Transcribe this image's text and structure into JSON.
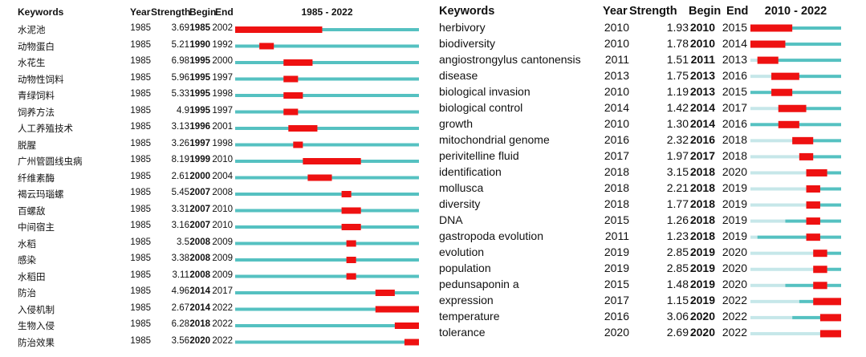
{
  "colors": {
    "line": "#55c1c1",
    "burst": "#ee1111",
    "light_line": "#c6e7e9"
  },
  "left": {
    "headers": {
      "keywords": "Keywords",
      "year": "Year",
      "strength": "Strength",
      "begin": "Begin",
      "end": "End",
      "range": "1985 - 2022"
    },
    "rows": [
      {
        "keyword": "水泥池",
        "year": "1985",
        "strength": "3.69",
        "begin": "1985",
        "end": "2002"
      },
      {
        "keyword": "动物蛋白",
        "year": "1985",
        "strength": "5.21",
        "begin": "1990",
        "end": "1992"
      },
      {
        "keyword": "水花生",
        "year": "1985",
        "strength": "6.98",
        "begin": "1995",
        "end": "2000"
      },
      {
        "keyword": "动物性饲料",
        "year": "1985",
        "strength": "5.96",
        "begin": "1995",
        "end": "1997"
      },
      {
        "keyword": "青绿饲料",
        "year": "1985",
        "strength": "5.33",
        "begin": "1995",
        "end": "1998"
      },
      {
        "keyword": "饲养方法",
        "year": "1985",
        "strength": "4.9",
        "begin": "1995",
        "end": "1997"
      },
      {
        "keyword": "人工养殖技术",
        "year": "1985",
        "strength": "3.13",
        "begin": "1996",
        "end": "2001"
      },
      {
        "keyword": "脱腥",
        "year": "1985",
        "strength": "3.26",
        "begin": "1997",
        "end": "1998"
      },
      {
        "keyword": "广州管圆线虫病",
        "year": "1985",
        "strength": "8.19",
        "begin": "1999",
        "end": "2010"
      },
      {
        "keyword": "纤维素酶",
        "year": "1985",
        "strength": "2.61",
        "begin": "2000",
        "end": "2004"
      },
      {
        "keyword": "褐云玛瑙螺",
        "year": "1985",
        "strength": "5.45",
        "begin": "2007",
        "end": "2008"
      },
      {
        "keyword": "百螺敌",
        "year": "1985",
        "strength": "3.31",
        "begin": "2007",
        "end": "2010"
      },
      {
        "keyword": "中间宿主",
        "year": "1985",
        "strength": "3.16",
        "begin": "2007",
        "end": "2010"
      },
      {
        "keyword": "水稻",
        "year": "1985",
        "strength": "3.5",
        "begin": "2008",
        "end": "2009"
      },
      {
        "keyword": "感染",
        "year": "1985",
        "strength": "3.38",
        "begin": "2008",
        "end": "2009"
      },
      {
        "keyword": "水稻田",
        "year": "1985",
        "strength": "3.11",
        "begin": "2008",
        "end": "2009"
      },
      {
        "keyword": "防治",
        "year": "1985",
        "strength": "4.96",
        "begin": "2014",
        "end": "2017"
      },
      {
        "keyword": "入侵机制",
        "year": "1985",
        "strength": "2.67",
        "begin": "2014",
        "end": "2022"
      },
      {
        "keyword": "生物入侵",
        "year": "1985",
        "strength": "6.28",
        "begin": "2018",
        "end": "2022"
      },
      {
        "keyword": "防治效果",
        "year": "1985",
        "strength": "3.56",
        "begin": "2020",
        "end": "2022"
      }
    ]
  },
  "right": {
    "headers": {
      "keywords": "Keywords",
      "year": "Year",
      "strength": "Strength",
      "begin": "Begin",
      "end": "End",
      "range": "2010 - 2022"
    },
    "rows": [
      {
        "keyword": "herbivory",
        "year": "2010",
        "strength": "1.93",
        "begin": "2010",
        "end": "2015"
      },
      {
        "keyword": "biodiversity",
        "year": "2010",
        "strength": "1.78",
        "begin": "2010",
        "end": "2014"
      },
      {
        "keyword": "angiostrongylus cantonensis",
        "year": "2011",
        "strength": "1.51",
        "begin": "2011",
        "end": "2013"
      },
      {
        "keyword": "disease",
        "year": "2013",
        "strength": "1.75",
        "begin": "2013",
        "end": "2016"
      },
      {
        "keyword": "biological invasion",
        "year": "2010",
        "strength": "1.19",
        "begin": "2013",
        "end": "2015"
      },
      {
        "keyword": "biological control",
        "year": "2014",
        "strength": "1.42",
        "begin": "2014",
        "end": "2017"
      },
      {
        "keyword": "growth",
        "year": "2010",
        "strength": "1.30",
        "begin": "2014",
        "end": "2016"
      },
      {
        "keyword": "mitochondrial genome",
        "year": "2016",
        "strength": "2.32",
        "begin": "2016",
        "end": "2018"
      },
      {
        "keyword": "perivitelline fluid",
        "year": "2017",
        "strength": "1.97",
        "begin": "2017",
        "end": "2018"
      },
      {
        "keyword": "identification",
        "year": "2018",
        "strength": "3.15",
        "begin": "2018",
        "end": "2020"
      },
      {
        "keyword": "mollusca",
        "year": "2018",
        "strength": "2.21",
        "begin": "2018",
        "end": "2019"
      },
      {
        "keyword": "diversity",
        "year": "2018",
        "strength": "1.77",
        "begin": "2018",
        "end": "2019"
      },
      {
        "keyword": "DNA",
        "year": "2015",
        "strength": "1.26",
        "begin": "2018",
        "end": "2019"
      },
      {
        "keyword": "gastropoda evolution",
        "year": "2011",
        "strength": "1.23",
        "begin": "2018",
        "end": "2019"
      },
      {
        "keyword": "evolution",
        "year": "2019",
        "strength": "2.85",
        "begin": "2019",
        "end": "2020"
      },
      {
        "keyword": "population",
        "year": "2019",
        "strength": "2.85",
        "begin": "2019",
        "end": "2020"
      },
      {
        "keyword": "pedunsaponin a",
        "year": "2015",
        "strength": "1.48",
        "begin": "2019",
        "end": "2020"
      },
      {
        "keyword": "expression",
        "year": "2017",
        "strength": "1.15",
        "begin": "2019",
        "end": "2022"
      },
      {
        "keyword": "temperature",
        "year": "2016",
        "strength": "3.06",
        "begin": "2020",
        "end": "2022"
      },
      {
        "keyword": "tolerance",
        "year": "2020",
        "strength": "2.69",
        "begin": "2020",
        "end": "2022"
      }
    ]
  },
  "chart_data": [
    {
      "type": "table",
      "title": "1985 - 2022",
      "columns": [
        "Keywords",
        "Year",
        "Strength",
        "Begin",
        "End"
      ],
      "range": [
        1985,
        2022
      ],
      "series": [
        {
          "keyword": "水泥池",
          "year": 1985,
          "strength": 3.69,
          "begin": 1985,
          "end": 2002
        },
        {
          "keyword": "动物蛋白",
          "year": 1985,
          "strength": 5.21,
          "begin": 1990,
          "end": 1992
        },
        {
          "keyword": "水花生",
          "year": 1985,
          "strength": 6.98,
          "begin": 1995,
          "end": 2000
        },
        {
          "keyword": "动物性饲料",
          "year": 1985,
          "strength": 5.96,
          "begin": 1995,
          "end": 1997
        },
        {
          "keyword": "青绿饲料",
          "year": 1985,
          "strength": 5.33,
          "begin": 1995,
          "end": 1998
        },
        {
          "keyword": "饲养方法",
          "year": 1985,
          "strength": 4.9,
          "begin": 1995,
          "end": 1997
        },
        {
          "keyword": "人工养殖技术",
          "year": 1985,
          "strength": 3.13,
          "begin": 1996,
          "end": 2001
        },
        {
          "keyword": "脱腥",
          "year": 1985,
          "strength": 3.26,
          "begin": 1997,
          "end": 1998
        },
        {
          "keyword": "广州管圆线虫病",
          "year": 1985,
          "strength": 8.19,
          "begin": 1999,
          "end": 2010
        },
        {
          "keyword": "纤维素酶",
          "year": 1985,
          "strength": 2.61,
          "begin": 2000,
          "end": 2004
        },
        {
          "keyword": "褐云玛瑙螺",
          "year": 1985,
          "strength": 5.45,
          "begin": 2007,
          "end": 2008
        },
        {
          "keyword": "百螺敌",
          "year": 1985,
          "strength": 3.31,
          "begin": 2007,
          "end": 2010
        },
        {
          "keyword": "中间宿主",
          "year": 1985,
          "strength": 3.16,
          "begin": 2007,
          "end": 2010
        },
        {
          "keyword": "水稻",
          "year": 1985,
          "strength": 3.5,
          "begin": 2008,
          "end": 2009
        },
        {
          "keyword": "感染",
          "year": 1985,
          "strength": 3.38,
          "begin": 2008,
          "end": 2009
        },
        {
          "keyword": "水稻田",
          "year": 1985,
          "strength": 3.11,
          "begin": 2008,
          "end": 2009
        },
        {
          "keyword": "防治",
          "year": 1985,
          "strength": 4.96,
          "begin": 2014,
          "end": 2017
        },
        {
          "keyword": "入侵机制",
          "year": 1985,
          "strength": 2.67,
          "begin": 2014,
          "end": 2022
        },
        {
          "keyword": "生物入侵",
          "year": 1985,
          "strength": 6.28,
          "begin": 2018,
          "end": 2022
        },
        {
          "keyword": "防治效果",
          "year": 1985,
          "strength": 3.56,
          "begin": 2020,
          "end": 2022
        }
      ]
    },
    {
      "type": "table",
      "title": "2010 - 2022",
      "columns": [
        "Keywords",
        "Year",
        "Strength",
        "Begin",
        "End"
      ],
      "range": [
        2010,
        2022
      ],
      "series": [
        {
          "keyword": "herbivory",
          "year": 2010,
          "strength": 1.93,
          "begin": 2010,
          "end": 2015
        },
        {
          "keyword": "biodiversity",
          "year": 2010,
          "strength": 1.78,
          "begin": 2010,
          "end": 2014
        },
        {
          "keyword": "angiostrongylus cantonensis",
          "year": 2011,
          "strength": 1.51,
          "begin": 2011,
          "end": 2013
        },
        {
          "keyword": "disease",
          "year": 2013,
          "strength": 1.75,
          "begin": 2013,
          "end": 2016
        },
        {
          "keyword": "biological invasion",
          "year": 2010,
          "strength": 1.19,
          "begin": 2013,
          "end": 2015
        },
        {
          "keyword": "biological control",
          "year": 2014,
          "strength": 1.42,
          "begin": 2014,
          "end": 2017
        },
        {
          "keyword": "growth",
          "year": 2010,
          "strength": 1.3,
          "begin": 2014,
          "end": 2016
        },
        {
          "keyword": "mitochondrial genome",
          "year": 2016,
          "strength": 2.32,
          "begin": 2016,
          "end": 2018
        },
        {
          "keyword": "perivitelline fluid",
          "year": 2017,
          "strength": 1.97,
          "begin": 2017,
          "end": 2018
        },
        {
          "keyword": "identification",
          "year": 2018,
          "strength": 3.15,
          "begin": 2018,
          "end": 2020
        },
        {
          "keyword": "mollusca",
          "year": 2018,
          "strength": 2.21,
          "begin": 2018,
          "end": 2019
        },
        {
          "keyword": "diversity",
          "year": 2018,
          "strength": 1.77,
          "begin": 2018,
          "end": 2019
        },
        {
          "keyword": "DNA",
          "year": 2015,
          "strength": 1.26,
          "begin": 2018,
          "end": 2019
        },
        {
          "keyword": "gastropoda evolution",
          "year": 2011,
          "strength": 1.23,
          "begin": 2018,
          "end": 2019
        },
        {
          "keyword": "evolution",
          "year": 2019,
          "strength": 2.85,
          "begin": 2019,
          "end": 2020
        },
        {
          "keyword": "population",
          "year": 2019,
          "strength": 2.85,
          "begin": 2019,
          "end": 2020
        },
        {
          "keyword": "pedunsaponin a",
          "year": 2015,
          "strength": 1.48,
          "begin": 2019,
          "end": 2020
        },
        {
          "keyword": "expression",
          "year": 2017,
          "strength": 1.15,
          "begin": 2019,
          "end": 2022
        },
        {
          "keyword": "temperature",
          "year": 2016,
          "strength": 3.06,
          "begin": 2020,
          "end": 2022
        },
        {
          "keyword": "tolerance",
          "year": 2020,
          "strength": 2.69,
          "begin": 2020,
          "end": 2022
        }
      ]
    }
  ]
}
